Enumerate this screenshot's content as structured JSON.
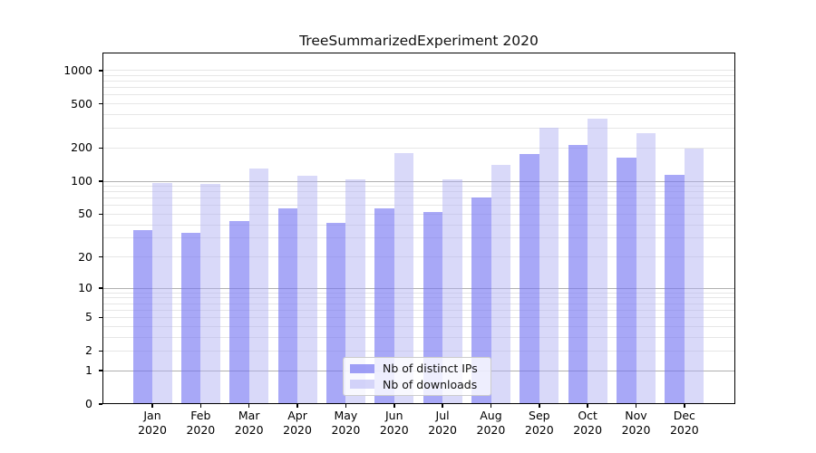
{
  "chart_data": {
    "type": "bar",
    "title": "TreeSummarizedExperiment 2020",
    "categories": [
      "Jan",
      "Feb",
      "Mar",
      "Apr",
      "May",
      "Jun",
      "Jul",
      "Aug",
      "Sep",
      "Oct",
      "Nov",
      "Dec"
    ],
    "x_tick_year": "2020",
    "series": [
      {
        "name": "Nb of distinct IPs",
        "color": "#7272f2",
        "opacity": 0.62,
        "values": [
          36,
          34,
          43,
          57,
          42,
          57,
          52,
          71,
          176,
          215,
          165,
          115
        ]
      },
      {
        "name": "Nb of downloads",
        "color": "#aeaef3",
        "opacity": 0.47,
        "values": [
          97,
          94,
          130,
          112,
          104,
          181,
          104,
          142,
          306,
          368,
          272,
          198
        ]
      }
    ],
    "yscale": "log1p",
    "ylim": [
      0,
      1400
    ],
    "y_tick_labels": [
      0,
      1,
      2,
      5,
      10,
      20,
      50,
      100,
      200,
      500,
      1000
    ],
    "y_major_gridlines": [
      1,
      10,
      100
    ],
    "y_minor_gridlines": [
      2,
      3,
      4,
      5,
      6,
      7,
      8,
      9,
      20,
      30,
      40,
      50,
      60,
      70,
      80,
      90,
      200,
      300,
      400,
      500,
      600,
      700,
      800,
      900,
      1000
    ],
    "grid": true,
    "legend_position": "lower-center",
    "colors": {
      "major_grid": "#b0b0b0",
      "minor_grid": "#e6e6e6",
      "spine": "#000000",
      "text": "#111111",
      "background": "#ffffff"
    }
  }
}
